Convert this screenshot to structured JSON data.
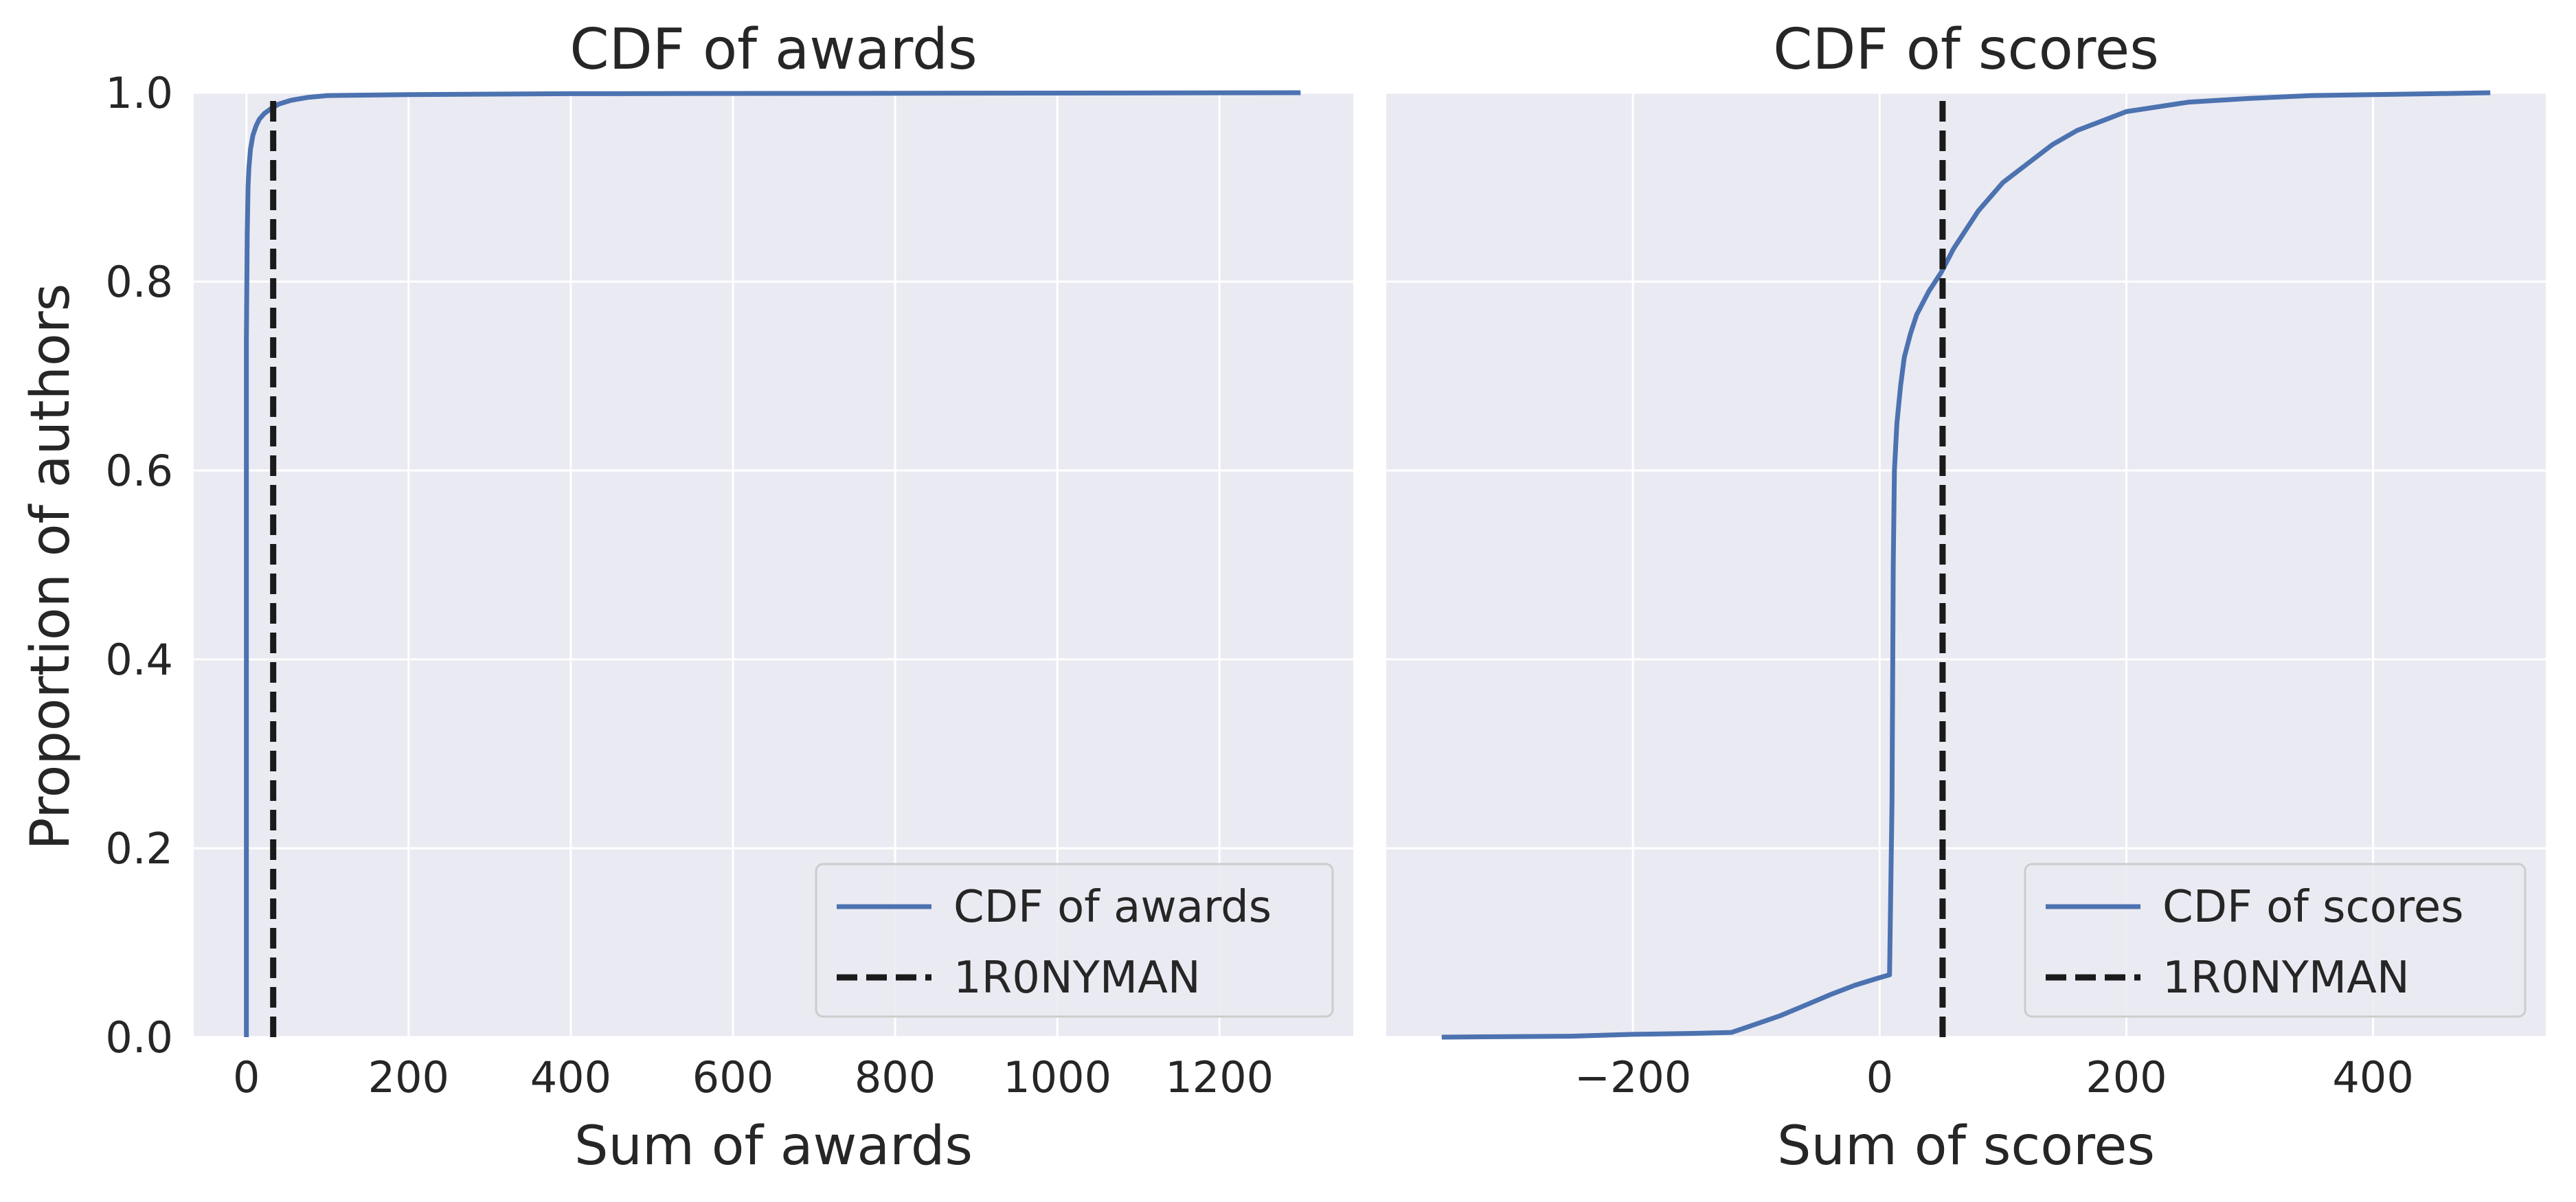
{
  "figure": {
    "ylabel": "Proportion of authors",
    "background_color": "#eaeaf2",
    "grid_color": "#ffffff",
    "cdf_color": "#4c72b0",
    "marker_color": "#1a1a1a"
  },
  "chart_data": [
    {
      "type": "line",
      "title": "CDF of awards",
      "xlabel": "Sum of awards",
      "ylabel": "Proportion of authors",
      "xlim": [
        -65,
        1365
      ],
      "ylim": [
        0.0,
        1.0
      ],
      "xticks": [
        0,
        200,
        400,
        600,
        800,
        1000,
        1200
      ],
      "xtick_labels": [
        "0",
        "200",
        "400",
        "600",
        "800",
        "1000",
        "1200"
      ],
      "yticks": [
        0.0,
        0.2,
        0.4,
        0.6,
        0.8,
        1.0
      ],
      "ytick_labels": [
        "0.0",
        "0.2",
        "0.4",
        "0.6",
        "0.8",
        "1.0"
      ],
      "grid": true,
      "legend": "lower right",
      "series": [
        {
          "name": "CDF of awards",
          "style": "solid",
          "x": [
            0,
            0,
            1,
            2,
            3,
            5,
            8,
            12,
            16,
            22,
            30,
            40,
            55,
            75,
            100,
            200,
            400,
            1300
          ],
          "y": [
            0.0,
            0.74,
            0.85,
            0.9,
            0.92,
            0.94,
            0.955,
            0.965,
            0.972,
            0.978,
            0.983,
            0.988,
            0.992,
            0.995,
            0.997,
            0.998,
            0.999,
            1.0
          ]
        },
        {
          "name": "1R0NYMAN",
          "style": "dashed",
          "x": [
            33,
            33
          ],
          "y": [
            0.0,
            1.0
          ]
        }
      ]
    },
    {
      "type": "line",
      "title": "CDF of scores",
      "xlabel": "Sum of scores",
      "xlim": [
        -400,
        540
      ],
      "ylim": [
        0.0,
        1.0
      ],
      "xticks": [
        -200,
        0,
        200,
        400
      ],
      "xtick_labels": [
        "−200",
        "0",
        "200",
        "400"
      ],
      "yticks": [
        0.0,
        0.2,
        0.4,
        0.6,
        0.8,
        1.0
      ],
      "grid": true,
      "legend": "lower right",
      "series": [
        {
          "name": "CDF of scores",
          "style": "solid",
          "x": [
            -355,
            -250,
            -200,
            -150,
            -120,
            -100,
            -80,
            -60,
            -40,
            -20,
            0,
            8,
            10,
            11,
            12,
            14,
            17,
            20,
            25,
            30,
            40,
            50,
            60,
            70,
            80,
            90,
            100,
            120,
            140,
            160,
            180,
            200,
            250,
            300,
            350,
            400,
            450,
            495
          ],
          "y": [
            0.0,
            0.001,
            0.003,
            0.004,
            0.005,
            0.014,
            0.023,
            0.034,
            0.045,
            0.055,
            0.063,
            0.066,
            0.25,
            0.5,
            0.6,
            0.65,
            0.69,
            0.72,
            0.745,
            0.765,
            0.79,
            0.81,
            0.835,
            0.855,
            0.875,
            0.89,
            0.905,
            0.925,
            0.945,
            0.96,
            0.97,
            0.98,
            0.99,
            0.994,
            0.997,
            0.998,
            0.999,
            1.0
          ]
        },
        {
          "name": "1R0NYMAN",
          "style": "dashed",
          "x": [
            51,
            51
          ],
          "y": [
            0.0,
            1.0
          ]
        }
      ]
    }
  ]
}
